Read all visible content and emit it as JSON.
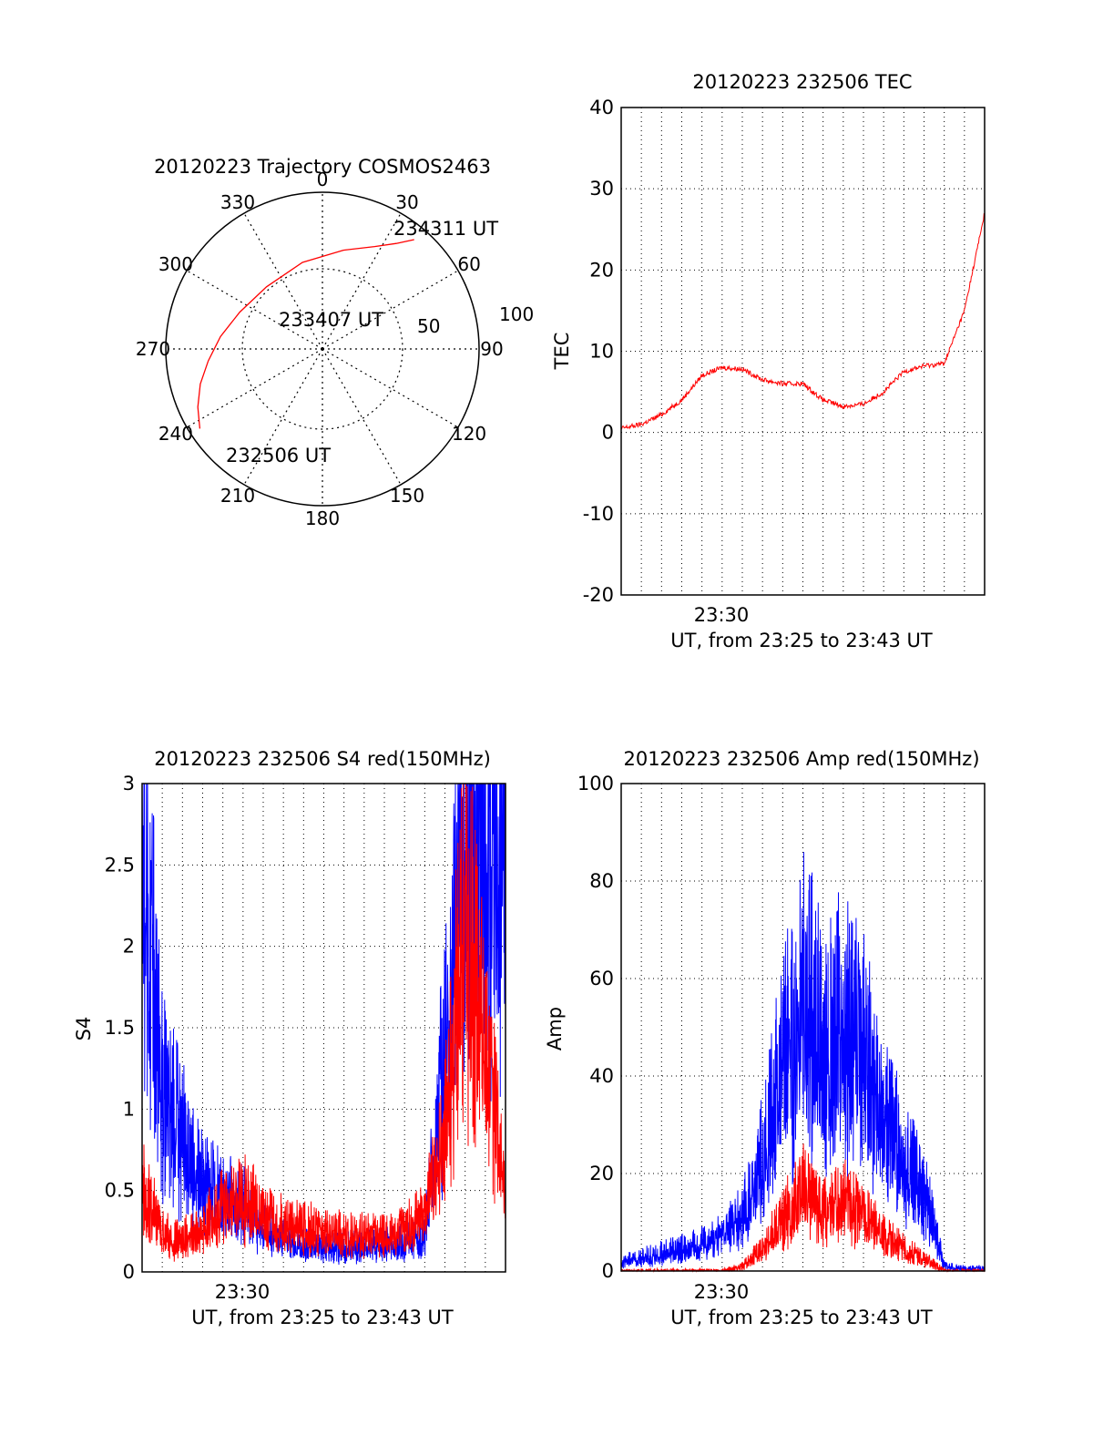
{
  "chart_data": [
    {
      "type": "polar",
      "title": "20120223 Trajectory COSMOS2463",
      "azimuth_labels": [
        "0",
        "30",
        "60",
        "90",
        "120",
        "150",
        "180",
        "210",
        "240",
        "270",
        "300",
        "330"
      ],
      "radial_labels": [
        "50",
        "100"
      ],
      "track": {
        "color": "#ff0000",
        "points": [
          {
            "az": 237,
            "el": 6
          },
          {
            "az": 245,
            "el": 11
          },
          {
            "az": 254,
            "el": 17
          },
          {
            "az": 264,
            "el": 24
          },
          {
            "az": 277,
            "el": 31
          },
          {
            "az": 294,
            "el": 38
          },
          {
            "az": 318,
            "el": 42
          },
          {
            "az": 347,
            "el": 39
          },
          {
            "az": 12,
            "el": 32
          },
          {
            "az": 27,
            "el": 24
          },
          {
            "az": 35,
            "el": 16
          },
          {
            "az": 40,
            "el": 8
          }
        ]
      },
      "annotations": [
        {
          "text": "234311 UT",
          "az": 40,
          "el": 8
        },
        {
          "text": "233407 UT",
          "az": 347,
          "el": 39
        },
        {
          "text": "232506 UT",
          "az": 237,
          "el": 6
        }
      ]
    },
    {
      "type": "line",
      "title": "20120223 232506 TEC",
      "ylabel": "TEC",
      "xlabel": "UT, from 23:25 to 23:43 UT",
      "xlim": [
        "23:25",
        "23:43"
      ],
      "ylim": [
        -20,
        40
      ],
      "yticks": [
        "-20",
        "-10",
        "0",
        "10",
        "20",
        "30",
        "40"
      ],
      "xtick_labels": [
        "23:30"
      ],
      "grid": true,
      "series": [
        {
          "color": "#ff0000",
          "x": [
            "23:25",
            "23:26",
            "23:27",
            "23:28",
            "23:29",
            "23:30",
            "23:31",
            "23:32",
            "23:33",
            "23:34",
            "23:35",
            "23:36",
            "23:37",
            "23:38",
            "23:39",
            "23:40",
            "23:41",
            "23:42",
            "23:43"
          ],
          "y": [
            0.5,
            1,
            2.2,
            4,
            7,
            8,
            7.8,
            6.5,
            6,
            6,
            4,
            3.2,
            3.5,
            5,
            7.5,
            8.2,
            8.5,
            15,
            27
          ]
        }
      ]
    },
    {
      "type": "line",
      "title": "20120223 232506 S4 red(150MHz)",
      "ylabel": "S4",
      "xlabel": "UT, from 23:25 to 23:43 UT",
      "xlim": [
        "23:25",
        "23:43"
      ],
      "ylim": [
        0,
        3
      ],
      "yticks": [
        "0",
        "0.5",
        "1",
        "1.5",
        "2",
        "2.5",
        "3"
      ],
      "xtick_labels": [
        "23:30"
      ],
      "grid": true,
      "series": [
        {
          "color": "#0000ff",
          "x": [
            "23:25",
            "23:26",
            "23:27",
            "23:28",
            "23:29",
            "23:30",
            "23:31",
            "23:32",
            "23:33",
            "23:34",
            "23:35",
            "23:36",
            "23:37",
            "23:38",
            "23:39",
            "23:40",
            "23:41",
            "23:42",
            "23:43"
          ],
          "y": [
            3,
            1.2,
            0.9,
            0.6,
            0.5,
            0.45,
            0.3,
            0.22,
            0.18,
            0.17,
            0.16,
            0.17,
            0.18,
            0.2,
            0.25,
            1.5,
            3,
            3,
            3
          ]
        },
        {
          "color": "#ff0000",
          "x": [
            "23:25",
            "23:26",
            "23:27",
            "23:28",
            "23:29",
            "23:30",
            "23:31",
            "23:32",
            "23:33",
            "23:34",
            "23:35",
            "23:36",
            "23:37",
            "23:38",
            "23:39",
            "23:40",
            "23:41",
            "23:42",
            "23:43"
          ],
          "y": [
            0.6,
            0.25,
            0.22,
            0.3,
            0.45,
            0.5,
            0.4,
            0.32,
            0.3,
            0.28,
            0.25,
            0.25,
            0.25,
            0.28,
            0.4,
            0.9,
            2.5,
            1.5,
            0.6
          ]
        }
      ]
    },
    {
      "type": "line",
      "title": "20120223 232506 Amp red(150MHz)",
      "ylabel": "Amp",
      "xlabel": "UT, from 23:25 to 23:43 UT",
      "xlim": [
        "23:25",
        "23:43"
      ],
      "ylim": [
        0,
        100
      ],
      "yticks": [
        "0",
        "20",
        "40",
        "60",
        "80",
        "100"
      ],
      "xtick_labels": [
        "23:30"
      ],
      "grid": true,
      "series": [
        {
          "color": "#0000ff",
          "x": [
            "23:25",
            "23:26",
            "23:27",
            "23:28",
            "23:29",
            "23:30",
            "23:31",
            "23:32",
            "23:33",
            "23:34",
            "23:35",
            "23:36",
            "23:37",
            "23:38",
            "23:39",
            "23:40",
            "23:41",
            "23:42",
            "23:43"
          ],
          "y": [
            2,
            3,
            4,
            5,
            6,
            8,
            12,
            25,
            45,
            62,
            50,
            55,
            48,
            35,
            25,
            18,
            1,
            0.5,
            0.5
          ]
        },
        {
          "color": "#ff0000",
          "x": [
            "23:25",
            "23:26",
            "23:27",
            "23:28",
            "23:29",
            "23:30",
            "23:31",
            "23:32",
            "23:33",
            "23:34",
            "23:35",
            "23:36",
            "23:37",
            "23:38",
            "23:39",
            "23:40",
            "23:41",
            "23:42",
            "23:43"
          ],
          "y": [
            0,
            0,
            0,
            0,
            0,
            0,
            1,
            5,
            12,
            18,
            14,
            16,
            12,
            8,
            5,
            3,
            0,
            0,
            0
          ]
        }
      ]
    }
  ]
}
